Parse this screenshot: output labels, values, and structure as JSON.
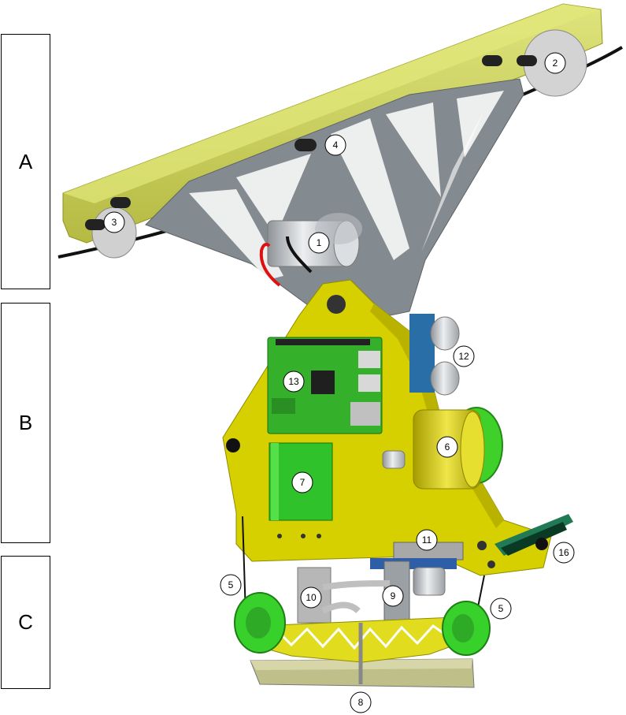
{
  "sections": [
    {
      "id": "a",
      "label": "A"
    },
    {
      "id": "b",
      "label": "B"
    },
    {
      "id": "c",
      "label": "C"
    }
  ],
  "callouts": [
    {
      "id": "c1",
      "label": "1"
    },
    {
      "id": "c2",
      "label": "2"
    },
    {
      "id": "c3",
      "label": "3"
    },
    {
      "id": "c4",
      "label": "4"
    },
    {
      "id": "c5a",
      "label": "5"
    },
    {
      "id": "c5b",
      "label": "5"
    },
    {
      "id": "c6",
      "label": "6"
    },
    {
      "id": "c7",
      "label": "7"
    },
    {
      "id": "c8",
      "label": "8"
    },
    {
      "id": "c9",
      "label": "9"
    },
    {
      "id": "c10",
      "label": "10"
    },
    {
      "id": "c11",
      "label": "11"
    },
    {
      "id": "c12",
      "label": "12"
    },
    {
      "id": "c13",
      "label": "13"
    },
    {
      "id": "c16",
      "label": "16"
    }
  ],
  "colors": {
    "rail": "#c8cf3a",
    "frame": "#848b90",
    "yellow_body": "#d6d000",
    "green_board": "#33b52c",
    "bright_green": "#3fe02a",
    "metal": "#c9ccd0",
    "black": "#111111"
  }
}
